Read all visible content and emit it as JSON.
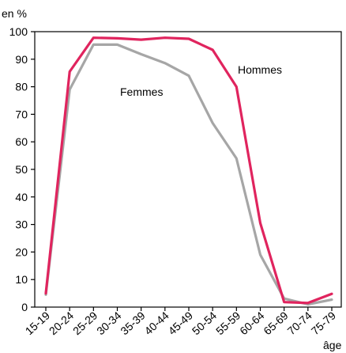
{
  "chart_data": {
    "type": "line",
    "ylabel": "en %",
    "xlabel": "âge",
    "ylim": [
      0,
      100
    ],
    "yticks": [
      0,
      10,
      20,
      30,
      40,
      50,
      60,
      70,
      80,
      90,
      100
    ],
    "grid": false,
    "categories": [
      "15-19",
      "20-24",
      "25-29",
      "30-34",
      "35-39",
      "40-44",
      "45-49",
      "50-54",
      "55-59",
      "60-64",
      "65-69",
      "70-74",
      "75-79"
    ],
    "series": [
      {
        "name": "Hommes",
        "color": "#e0245e",
        "values": [
          5,
          85.5,
          97.8,
          97.6,
          97.1,
          97.8,
          97.4,
          93.4,
          80,
          30.5,
          1.8,
          1.5,
          4.8
        ]
      },
      {
        "name": "Femmes",
        "color": "#a6a6a6",
        "values": [
          4.5,
          79,
          95.3,
          95.3,
          91.8,
          88.6,
          84,
          66.8,
          54,
          19,
          3.1,
          1,
          2.7
        ]
      }
    ]
  }
}
